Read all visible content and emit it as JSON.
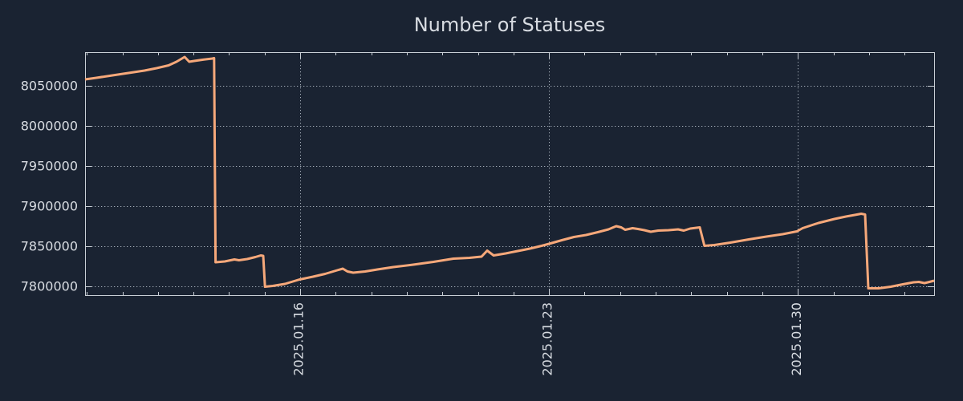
{
  "title": "Number of Statuses",
  "chart_data": {
    "type": "line",
    "title": "Number of Statuses",
    "x_axis": {
      "unit": "date",
      "tick_labels": [
        "2025.01.16",
        "2025.01.23",
        "2025.01.30"
      ],
      "major_tick_days": [
        6.05,
        13.05,
        20.05
      ],
      "minor_tick_interval_days": 1,
      "first_minor_tick_day": 0.05,
      "range_days": [
        0,
        23.88
      ],
      "label_rotation_deg": -90
    },
    "y_axis": {
      "tick_values": [
        7800000,
        7850000,
        7900000,
        7950000,
        8000000,
        8050000
      ],
      "tick_labels": [
        "7800000",
        "7850000",
        "7900000",
        "7950000",
        "8000000",
        "8050000"
      ],
      "range": [
        7789000,
        8092000
      ],
      "grid": true
    },
    "series": [
      {
        "name": "statuses",
        "color": "#f6a87a",
        "points": [
          [
            0.0,
            8058000
          ],
          [
            0.32,
            8060000
          ],
          [
            0.77,
            8063000
          ],
          [
            1.22,
            8066000
          ],
          [
            1.67,
            8069000
          ],
          [
            2.01,
            8072000
          ],
          [
            2.35,
            8075500
          ],
          [
            2.57,
            8080000
          ],
          [
            2.8,
            8086000
          ],
          [
            2.93,
            8080000
          ],
          [
            3.07,
            8081000
          ],
          [
            3.3,
            8082500
          ],
          [
            3.58,
            8084000
          ],
          [
            3.63,
            8084500
          ],
          [
            3.67,
            7830000
          ],
          [
            3.93,
            7831000
          ],
          [
            4.2,
            7833500
          ],
          [
            4.33,
            7832500
          ],
          [
            4.56,
            7834000
          ],
          [
            4.79,
            7836500
          ],
          [
            4.94,
            7838500
          ],
          [
            5.01,
            7838000
          ],
          [
            5.06,
            7799500
          ],
          [
            5.28,
            7800500
          ],
          [
            5.62,
            7803000
          ],
          [
            6.03,
            7808500
          ],
          [
            6.41,
            7812000
          ],
          [
            6.75,
            7815500
          ],
          [
            7.09,
            7820000
          ],
          [
            7.25,
            7822000
          ],
          [
            7.38,
            7818500
          ],
          [
            7.54,
            7817000
          ],
          [
            7.88,
            7818500
          ],
          [
            8.22,
            7821000
          ],
          [
            8.67,
            7824000
          ],
          [
            9.23,
            7827000
          ],
          [
            9.8,
            7830500
          ],
          [
            10.36,
            7834500
          ],
          [
            10.81,
            7835500
          ],
          [
            11.03,
            7836500
          ],
          [
            11.15,
            7837000
          ],
          [
            11.31,
            7844500
          ],
          [
            11.49,
            7838500
          ],
          [
            11.83,
            7841000
          ],
          [
            12.17,
            7844000
          ],
          [
            12.51,
            7847000
          ],
          [
            12.84,
            7850500
          ],
          [
            13.05,
            7853000
          ],
          [
            13.41,
            7857500
          ],
          [
            13.75,
            7861500
          ],
          [
            14.09,
            7864000
          ],
          [
            14.42,
            7867500
          ],
          [
            14.72,
            7871000
          ],
          [
            14.94,
            7875000
          ],
          [
            15.08,
            7873500
          ],
          [
            15.19,
            7870500
          ],
          [
            15.4,
            7872500
          ],
          [
            15.55,
            7871500
          ],
          [
            15.73,
            7870000
          ],
          [
            15.91,
            7868000
          ],
          [
            16.12,
            7869500
          ],
          [
            16.41,
            7870000
          ],
          [
            16.68,
            7871000
          ],
          [
            16.84,
            7869500
          ],
          [
            17.02,
            7872000
          ],
          [
            17.2,
            7873000
          ],
          [
            17.29,
            7873500
          ],
          [
            17.42,
            7850500
          ],
          [
            17.7,
            7851500
          ],
          [
            18.15,
            7854500
          ],
          [
            18.67,
            7858500
          ],
          [
            19.16,
            7862000
          ],
          [
            19.62,
            7865000
          ],
          [
            20.02,
            7868500
          ],
          [
            20.18,
            7872500
          ],
          [
            20.63,
            7879000
          ],
          [
            21.08,
            7884000
          ],
          [
            21.4,
            7887000
          ],
          [
            21.65,
            7889000
          ],
          [
            21.83,
            7890500
          ],
          [
            21.94,
            7889500
          ],
          [
            22.03,
            7797500
          ],
          [
            22.32,
            7797500
          ],
          [
            22.66,
            7799500
          ],
          [
            23.0,
            7802500
          ],
          [
            23.3,
            7805000
          ],
          [
            23.45,
            7805500
          ],
          [
            23.61,
            7804000
          ],
          [
            23.75,
            7805500
          ],
          [
            23.88,
            7807000
          ]
        ]
      }
    ],
    "colors": {
      "background": "#1a2332",
      "axis": "#c9cfd6",
      "grid": "#a2abb6",
      "text": "#d8dce2",
      "line": "#f6a87a"
    }
  }
}
